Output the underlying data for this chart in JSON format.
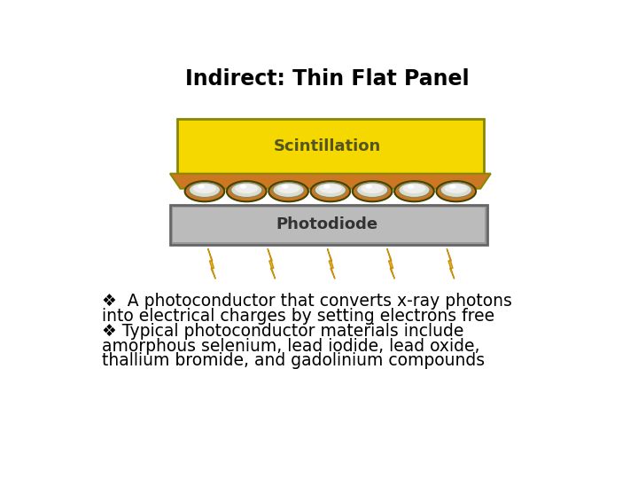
{
  "title": "Indirect: Thin Flat Panel",
  "title_fontsize": 17,
  "scintillation_label": "Scintillation",
  "photodiode_label": "Photodiode",
  "bullet1_line1": "❖  A photoconductor that converts x-ray photons",
  "bullet1_line2": "into electrical charges by setting electrons free",
  "bullet2_line1": "❖ Typical photoconductor materials include",
  "bullet2_line2": "amorphous selenium, lead iodide, lead oxide,",
  "bullet2_line3": "thallium bromide, and gadolinium compounds",
  "text_fontsize": 13.5,
  "bg_color": "#ffffff",
  "scint_yellow": "#f5d800",
  "scint_border": "#888800",
  "scint_orange": "#cc7722",
  "photodiode_gray_light": "#bbbbbb",
  "photodiode_gray_dark": "#999999",
  "photodiode_border": "#666666",
  "scint_label_color": "#555522",
  "photo_label_color": "#333333",
  "bolt_color": "#f5c518",
  "bolt_edge": "#c89010",
  "lens_outer": "#cc8822",
  "lens_mid": "#ddddcc",
  "lens_inner": "#eeeeee",
  "lens_highlight": "#ffffff",
  "n_lenses": 7,
  "n_bolts": 5
}
